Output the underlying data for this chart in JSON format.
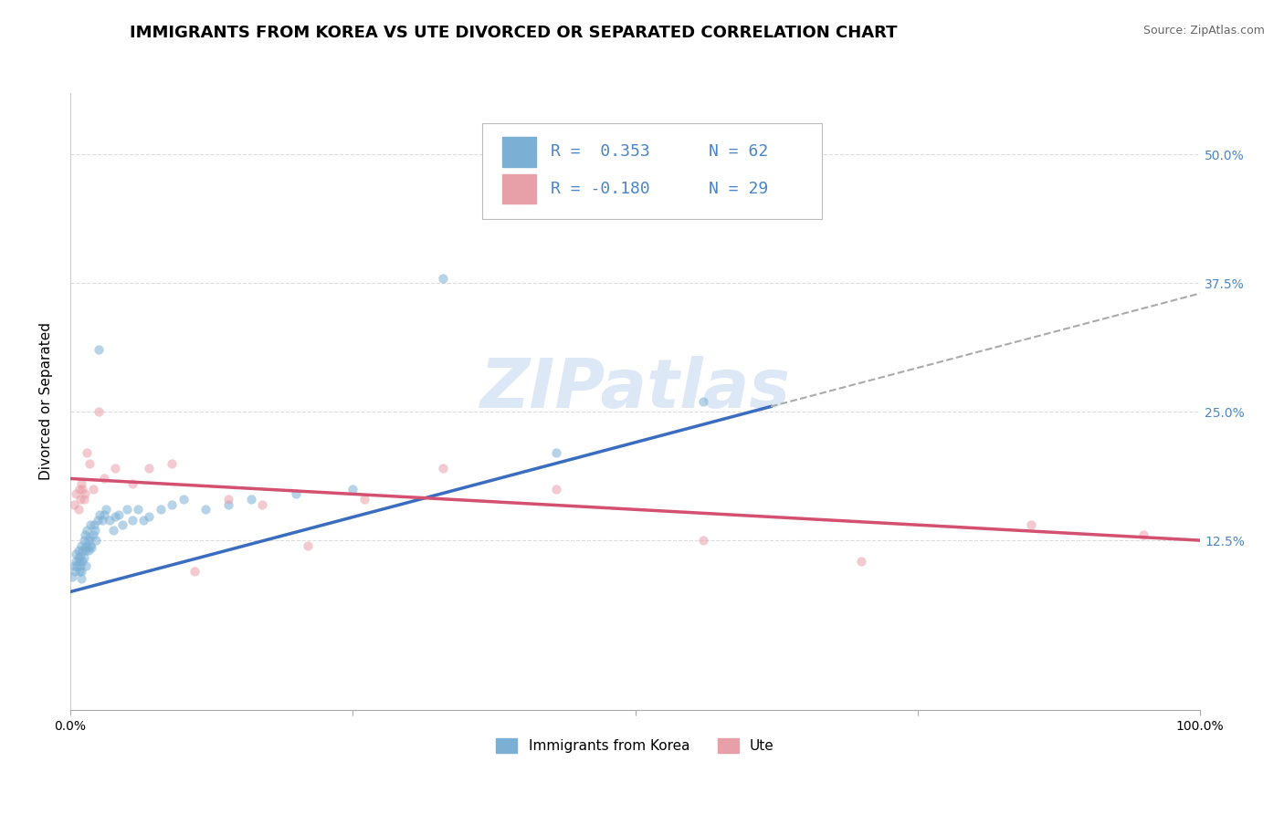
{
  "title": "IMMIGRANTS FROM KOREA VS UTE DIVORCED OR SEPARATED CORRELATION CHART",
  "source_text": "Source: ZipAtlas.com",
  "ylabel": "Divorced or Separated",
  "xlim": [
    0.0,
    1.0
  ],
  "ylim": [
    -0.04,
    0.56
  ],
  "yticks": [
    0.125,
    0.25,
    0.375,
    0.5
  ],
  "ytick_labels": [
    "12.5%",
    "25.0%",
    "37.5%",
    "50.0%"
  ],
  "xticks": [
    0.0,
    0.25,
    0.5,
    0.75,
    1.0
  ],
  "xtick_labels": [
    "0.0%",
    "",
    "",
    "",
    "100.0%"
  ],
  "legend_r1": "R =  0.353",
  "legend_n1": "N = 62",
  "legend_r2": "R = -0.180",
  "legend_n2": "N = 29",
  "blue_color": "#7bafd4",
  "pink_color": "#e8a0a8",
  "blue_line_color": "#3a6dbf",
  "pink_line_color": "#d45070",
  "dashed_line_color": "#aaaaaa",
  "watermark": "ZIPatlas",
  "watermark_color": "#dce8f5",
  "legend_text_color": "#4a86c8",
  "grid_color": "#dddddd",
  "background_color": "#ffffff",
  "title_fontsize": 13,
  "axis_label_fontsize": 11,
  "tick_fontsize": 10,
  "legend_fontsize": 13,
  "scatter_size": 55,
  "scatter_alpha": 0.55,
  "bottom_legend_labels": [
    "Immigrants from Korea",
    "Ute"
  ],
  "bottom_legend_colors": [
    "#7bafd4",
    "#e8a0a8"
  ],
  "blue_scatter_x": [
    0.002,
    0.003,
    0.004,
    0.005,
    0.005,
    0.006,
    0.007,
    0.007,
    0.008,
    0.008,
    0.009,
    0.009,
    0.01,
    0.01,
    0.01,
    0.011,
    0.011,
    0.012,
    0.012,
    0.013,
    0.013,
    0.014,
    0.014,
    0.015,
    0.015,
    0.016,
    0.016,
    0.017,
    0.018,
    0.018,
    0.019,
    0.02,
    0.021,
    0.022,
    0.023,
    0.024,
    0.025,
    0.026,
    0.028,
    0.03,
    0.032,
    0.035,
    0.038,
    0.04,
    0.043,
    0.046,
    0.05,
    0.055,
    0.06,
    0.065,
    0.07,
    0.08,
    0.09,
    0.1,
    0.12,
    0.14,
    0.16,
    0.2,
    0.25,
    0.33,
    0.43,
    0.56
  ],
  "blue_scatter_y": [
    0.09,
    0.1,
    0.095,
    0.105,
    0.112,
    0.1,
    0.108,
    0.115,
    0.095,
    0.105,
    0.11,
    0.1,
    0.12,
    0.095,
    0.088,
    0.105,
    0.115,
    0.125,
    0.108,
    0.118,
    0.13,
    0.1,
    0.115,
    0.135,
    0.12,
    0.115,
    0.125,
    0.128,
    0.14,
    0.12,
    0.118,
    0.13,
    0.14,
    0.135,
    0.125,
    0.145,
    0.31,
    0.15,
    0.145,
    0.15,
    0.155,
    0.145,
    0.135,
    0.148,
    0.15,
    0.14,
    0.155,
    0.145,
    0.155,
    0.145,
    0.148,
    0.155,
    0.16,
    0.165,
    0.155,
    0.16,
    0.165,
    0.17,
    0.175,
    0.38,
    0.21,
    0.26
  ],
  "pink_scatter_x": [
    0.003,
    0.005,
    0.007,
    0.008,
    0.009,
    0.01,
    0.011,
    0.012,
    0.013,
    0.015,
    0.017,
    0.02,
    0.025,
    0.03,
    0.04,
    0.055,
    0.07,
    0.09,
    0.11,
    0.14,
    0.17,
    0.21,
    0.26,
    0.33,
    0.43,
    0.56,
    0.7,
    0.85,
    0.95
  ],
  "pink_scatter_y": [
    0.16,
    0.17,
    0.155,
    0.175,
    0.165,
    0.18,
    0.175,
    0.165,
    0.17,
    0.21,
    0.2,
    0.175,
    0.25,
    0.185,
    0.195,
    0.18,
    0.195,
    0.2,
    0.095,
    0.165,
    0.16,
    0.12,
    0.165,
    0.195,
    0.175,
    0.125,
    0.105,
    0.14,
    0.13
  ],
  "blue_line_x0": 0.0,
  "blue_line_x1": 0.62,
  "blue_line_y0": 0.075,
  "blue_line_y1": 0.255,
  "dashed_line_x0": 0.62,
  "dashed_line_x1": 1.0,
  "dashed_line_y0": 0.255,
  "dashed_line_y1": 0.365,
  "pink_line_x0": 0.0,
  "pink_line_x1": 1.0,
  "pink_line_y0": 0.185,
  "pink_line_y1": 0.125
}
